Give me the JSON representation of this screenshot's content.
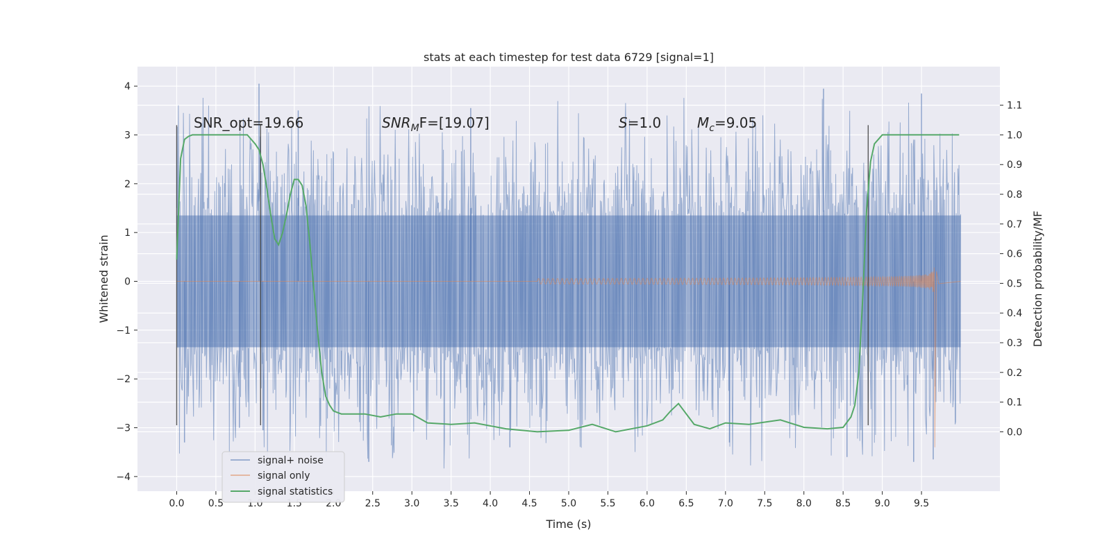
{
  "chart_data": {
    "type": "line",
    "title": "stats at each timestep for test data 6729 [signal=1]",
    "xlabel": "Time (s)",
    "ylabel": "Whitened strain",
    "y2label": "Detection probability/MF",
    "xlim": [
      -0.5,
      10.5
    ],
    "ylim": [
      -4.3,
      4.4
    ],
    "y2lim": [
      -0.2,
      1.23
    ],
    "xticks": [
      0.0,
      0.5,
      1.0,
      1.5,
      2.0,
      2.5,
      3.0,
      3.5,
      4.0,
      4.5,
      5.0,
      5.5,
      6.0,
      6.5,
      7.0,
      7.5,
      8.0,
      8.5,
      9.0,
      9.5
    ],
    "yticks": [
      -4,
      -3,
      -2,
      -1,
      0,
      1,
      2,
      3,
      4
    ],
    "y2ticks": [
      0.0,
      0.1,
      0.2,
      0.3,
      0.4,
      0.5,
      0.6,
      0.7,
      0.8,
      0.9,
      1.0,
      1.1
    ],
    "grid": true,
    "legend": {
      "placement": "lower-left",
      "entries": [
        "signal+ noise",
        "signal only",
        "signal statistics"
      ]
    },
    "annotations": {
      "snr_opt": "SNR_opt=19.66",
      "snr_mf_name": "SNR",
      "snr_mf_sub": "M",
      "snr_mf_tail": "F=[19.07]",
      "s_name": "S",
      "s_value": "=1.0",
      "mc_name": "M",
      "mc_sub": "c",
      "mc_value": "=9.05"
    },
    "vlines": [
      0.0,
      1.07,
      8.82
    ],
    "vline_range": [
      -2.95,
      3.2
    ],
    "series": [
      {
        "name": "signal+ noise",
        "color": "#4c72b0",
        "x_range": [
          0.0,
          10.0
        ],
        "envelope": 2.0,
        "extremes": [
          [
            1.05,
            4.05
          ],
          [
            1.55,
            3.5
          ],
          [
            8.25,
            3.95
          ],
          [
            9.5,
            3.85
          ],
          [
            3.75,
            3.55
          ],
          [
            1.1,
            -3.05
          ],
          [
            2.45,
            -3.4
          ],
          [
            2.45,
            -3.7
          ],
          [
            4.25,
            -3.4
          ],
          [
            9.4,
            -3.7
          ],
          [
            9.65,
            -3.65
          ],
          [
            0.1,
            -3.3
          ],
          [
            8.55,
            -3.6
          ],
          [
            0.8,
            -3.0
          ],
          [
            7.05,
            -3.3
          ]
        ]
      },
      {
        "name": "signal only",
        "color": "#dd8452",
        "merger_time": 9.67,
        "peak": 2.2
      },
      {
        "name": "signal statistics",
        "color": "#55a868",
        "x": [
          0.0,
          0.05,
          0.1,
          0.15,
          0.2,
          0.3,
          0.5,
          0.7,
          0.9,
          1.0,
          1.05,
          1.1,
          1.15,
          1.2,
          1.25,
          1.3,
          1.35,
          1.4,
          1.45,
          1.5,
          1.55,
          1.6,
          1.65,
          1.7,
          1.75,
          1.8,
          1.85,
          1.9,
          1.95,
          2.0,
          2.05,
          2.1,
          2.2,
          2.4,
          2.6,
          2.8,
          3.0,
          3.2,
          3.5,
          3.8,
          4.2,
          4.6,
          5.0,
          5.3,
          5.6,
          6.0,
          6.2,
          6.3,
          6.4,
          6.6,
          6.8,
          7.0,
          7.3,
          7.7,
          8.0,
          8.3,
          8.5,
          8.6,
          8.65,
          8.7,
          8.75,
          8.8,
          8.85,
          8.9,
          9.0,
          9.2,
          9.5,
          9.8,
          9.98
        ],
        "values": [
          0.58,
          0.92,
          0.985,
          0.995,
          1.0,
          1.0,
          1.0,
          1.0,
          1.0,
          0.97,
          0.95,
          0.9,
          0.82,
          0.73,
          0.65,
          0.63,
          0.67,
          0.73,
          0.8,
          0.85,
          0.85,
          0.83,
          0.76,
          0.63,
          0.48,
          0.33,
          0.2,
          0.12,
          0.09,
          0.07,
          0.065,
          0.06,
          0.06,
          0.06,
          0.05,
          0.06,
          0.06,
          0.03,
          0.025,
          0.03,
          0.01,
          0.0,
          0.005,
          0.025,
          0.0,
          0.02,
          0.04,
          0.07,
          0.095,
          0.025,
          0.01,
          0.03,
          0.025,
          0.04,
          0.015,
          0.01,
          0.015,
          0.05,
          0.09,
          0.2,
          0.45,
          0.75,
          0.91,
          0.97,
          1.0,
          1.0,
          1.0,
          1.0,
          1.0
        ]
      }
    ]
  }
}
